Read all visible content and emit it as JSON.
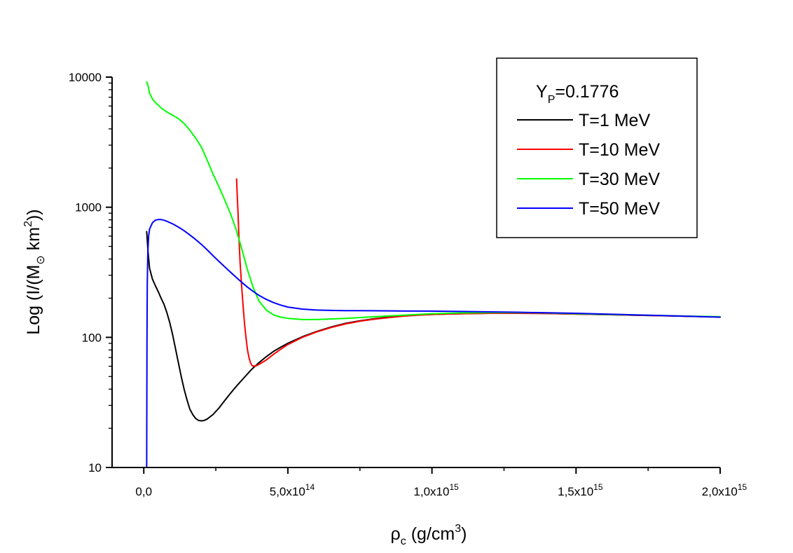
{
  "chart_data": {
    "type": "line",
    "x_scale": "linear",
    "y_scale": "log",
    "xlim": [
      -110000000000000.0,
      2000000000000000.0
    ],
    "ylim": [
      10,
      10000
    ],
    "xticks": [
      {
        "value": 0,
        "mantissa": "0,0",
        "exponent": ""
      },
      {
        "value": 500000000000000.0,
        "mantissa": "5,0x10",
        "exponent": "14"
      },
      {
        "value": 1000000000000000.0,
        "mantissa": "1,0x10",
        "exponent": "15"
      },
      {
        "value": 1500000000000000.0,
        "mantissa": "1,5x10",
        "exponent": "15"
      },
      {
        "value": 2000000000000000.0,
        "mantissa": "2,0x10",
        "exponent": "15"
      }
    ],
    "xminor": [
      250000000000000.0,
      750000000000000.0,
      1250000000000000.0,
      1750000000000000.0
    ],
    "yticks": [
      {
        "value": 10,
        "label": "10"
      },
      {
        "value": 100,
        "label": "100"
      },
      {
        "value": 1000,
        "label": "1000"
      },
      {
        "value": 10000,
        "label": "10000"
      }
    ],
    "xlabel": {
      "main": "ρ",
      "sub": "c",
      "unit_pre": " (g/cm",
      "sup": "3",
      "unit_post": ")"
    },
    "ylabel": {
      "pre": "Log (I/(M",
      "sub": "⊙",
      "mid": " km",
      "sup": "2",
      "post": "))"
    },
    "legend": {
      "position": "top-right",
      "title": {
        "main": "Y",
        "sub": "P",
        "rest": "=0.1776"
      }
    },
    "series": [
      {
        "name": "T=1 MeV",
        "color": "#000000",
        "points": [
          [
            10000000000000.0,
            650
          ],
          [
            15000000000000.0,
            450
          ],
          [
            20000000000000.0,
            340
          ],
          [
            30000000000000.0,
            280
          ],
          [
            40000000000000.0,
            250
          ],
          [
            50000000000000.0,
            225
          ],
          [
            60000000000000.0,
            200
          ],
          [
            70000000000000.0,
            180
          ],
          [
            80000000000000.0,
            155
          ],
          [
            90000000000000.0,
            130
          ],
          [
            100000000000000.0,
            105
          ],
          [
            110000000000000.0,
            82
          ],
          [
            120000000000000.0,
            64
          ],
          [
            130000000000000.0,
            50
          ],
          [
            140000000000000.0,
            40
          ],
          [
            150000000000000.0,
            33
          ],
          [
            160000000000000.0,
            28
          ],
          [
            170000000000000.0,
            25.5
          ],
          [
            180000000000000.0,
            23.8
          ],
          [
            190000000000000.0,
            23
          ],
          [
            200000000000000.0,
            22.8
          ],
          [
            210000000000000.0,
            23
          ],
          [
            220000000000000.0,
            23.6
          ],
          [
            240000000000000.0,
            25.5
          ],
          [
            260000000000000.0,
            28.5
          ],
          [
            280000000000000.0,
            32.5
          ],
          [
            300000000000000.0,
            37
          ],
          [
            325000000000000.0,
            43
          ],
          [
            350000000000000.0,
            49.5
          ],
          [
            375000000000000.0,
            57
          ],
          [
            400000000000000.0,
            64
          ],
          [
            425000000000000.0,
            71
          ],
          [
            450000000000000.0,
            78
          ],
          [
            475000000000000.0,
            84
          ],
          [
            500000000000000.0,
            90
          ],
          [
            550000000000000.0,
            101
          ],
          [
            600000000000000.0,
            111
          ],
          [
            650000000000000.0,
            120
          ],
          [
            700000000000000.0,
            128
          ],
          [
            750000000000000.0,
            134
          ],
          [
            800000000000000.0,
            139
          ],
          [
            850000000000000.0,
            143
          ],
          [
            900000000000000.0,
            146
          ],
          [
            950000000000000.0,
            148.5
          ],
          [
            1000000000000000.0,
            150
          ],
          [
            1100000000000000.0,
            152
          ],
          [
            1200000000000000.0,
            153
          ],
          [
            1300000000000000.0,
            153
          ],
          [
            1400000000000000.0,
            152.5
          ],
          [
            1500000000000000.0,
            151
          ],
          [
            1600000000000000.0,
            149.5
          ],
          [
            1700000000000000.0,
            148
          ],
          [
            1800000000000000.0,
            146.5
          ],
          [
            1900000000000000.0,
            145
          ],
          [
            2000000000000000.0,
            143.5
          ]
        ]
      },
      {
        "name": "T=10 MeV",
        "color": "#ff0000",
        "points": [
          [
            322000000000000.0,
            1650
          ],
          [
            324000000000000.0,
            1300
          ],
          [
            327000000000000.0,
            900
          ],
          [
            330000000000000.0,
            600
          ],
          [
            334000000000000.0,
            380
          ],
          [
            340000000000000.0,
            240
          ],
          [
            345000000000000.0,
            170
          ],
          [
            350000000000000.0,
            125
          ],
          [
            355000000000000.0,
            98
          ],
          [
            360000000000000.0,
            80
          ],
          [
            365000000000000.0,
            70
          ],
          [
            370000000000000.0,
            64
          ],
          [
            375000000000000.0,
            61
          ],
          [
            380000000000000.0,
            60
          ],
          [
            390000000000000.0,
            60.5
          ],
          [
            400000000000000.0,
            62
          ],
          [
            425000000000000.0,
            67
          ],
          [
            450000000000000.0,
            74
          ],
          [
            475000000000000.0,
            81
          ],
          [
            500000000000000.0,
            88
          ],
          [
            550000000000000.0,
            100
          ],
          [
            600000000000000.0,
            110
          ],
          [
            650000000000000.0,
            119
          ],
          [
            700000000000000.0,
            127
          ],
          [
            750000000000000.0,
            133
          ],
          [
            800000000000000.0,
            138
          ],
          [
            850000000000000.0,
            142
          ],
          [
            900000000000000.0,
            145.5
          ],
          [
            950000000000000.0,
            148
          ],
          [
            1000000000000000.0,
            150
          ],
          [
            1100000000000000.0,
            152
          ],
          [
            1200000000000000.0,
            153
          ],
          [
            1300000000000000.0,
            153
          ],
          [
            1400000000000000.0,
            152.5
          ],
          [
            1500000000000000.0,
            151
          ],
          [
            1600000000000000.0,
            149.5
          ],
          [
            1700000000000000.0,
            148
          ],
          [
            1800000000000000.0,
            146.5
          ],
          [
            1900000000000000.0,
            145
          ],
          [
            2000000000000000.0,
            143.5
          ]
        ]
      },
      {
        "name": "T=30 MeV",
        "color": "#00ff00",
        "points": [
          [
            10000000000000.0,
            9200
          ],
          [
            15000000000000.0,
            8600
          ],
          [
            20000000000000.0,
            7500
          ],
          [
            30000000000000.0,
            6800
          ],
          [
            40000000000000.0,
            6400
          ],
          [
            50000000000000.0,
            6100
          ],
          [
            60000000000000.0,
            5800
          ],
          [
            80000000000000.0,
            5400
          ],
          [
            100000000000000.0,
            5100
          ],
          [
            120000000000000.0,
            4800
          ],
          [
            140000000000000.0,
            4400
          ],
          [
            160000000000000.0,
            3900
          ],
          [
            180000000000000.0,
            3400
          ],
          [
            200000000000000.0,
            2900
          ],
          [
            220000000000000.0,
            2300
          ],
          [
            240000000000000.0,
            1800
          ],
          [
            260000000000000.0,
            1450
          ],
          [
            280000000000000.0,
            1150
          ],
          [
            300000000000000.0,
            900
          ],
          [
            320000000000000.0,
            680
          ],
          [
            340000000000000.0,
            480
          ],
          [
            360000000000000.0,
            330
          ],
          [
            380000000000000.0,
            240
          ],
          [
            400000000000000.0,
            190
          ],
          [
            425000000000000.0,
            162
          ],
          [
            450000000000000.0,
            149
          ],
          [
            475000000000000.0,
            143
          ],
          [
            500000000000000.0,
            140
          ],
          [
            550000000000000.0,
            137
          ],
          [
            600000000000000.0,
            137
          ],
          [
            650000000000000.0,
            138.5
          ],
          [
            700000000000000.0,
            140
          ],
          [
            800000000000000.0,
            144
          ],
          [
            900000000000000.0,
            148
          ],
          [
            1000000000000000.0,
            152
          ],
          [
            1100000000000000.0,
            154
          ],
          [
            1200000000000000.0,
            155
          ],
          [
            1300000000000000.0,
            155
          ],
          [
            1400000000000000.0,
            154
          ],
          [
            1500000000000000.0,
            152
          ],
          [
            1600000000000000.0,
            150
          ],
          [
            1700000000000000.0,
            148.5
          ],
          [
            1800000000000000.0,
            147
          ],
          [
            1900000000000000.0,
            145.5
          ],
          [
            2000000000000000.0,
            144
          ]
        ]
      },
      {
        "name": "T=50 MeV",
        "color": "#0000ff",
        "points": [
          [
            10000000000000.0,
            10
          ],
          [
            10500000000000.0,
            30
          ],
          [
            11000000000000.0,
            90
          ],
          [
            12000000000000.0,
            250
          ],
          [
            14000000000000.0,
            450
          ],
          [
            17000000000000.0,
            600
          ],
          [
            20000000000000.0,
            680
          ],
          [
            30000000000000.0,
            760
          ],
          [
            40000000000000.0,
            795
          ],
          [
            50000000000000.0,
            805
          ],
          [
            60000000000000.0,
            805
          ],
          [
            70000000000000.0,
            795
          ],
          [
            80000000000000.0,
            780
          ],
          [
            100000000000000.0,
            745
          ],
          [
            120000000000000.0,
            705
          ],
          [
            140000000000000.0,
            660
          ],
          [
            160000000000000.0,
            612
          ],
          [
            180000000000000.0,
            565
          ],
          [
            200000000000000.0,
            518
          ],
          [
            220000000000000.0,
            470
          ],
          [
            240000000000000.0,
            425
          ],
          [
            260000000000000.0,
            385
          ],
          [
            280000000000000.0,
            350
          ],
          [
            300000000000000.0,
            318
          ],
          [
            320000000000000.0,
            290
          ],
          [
            340000000000000.0,
            265
          ],
          [
            360000000000000.0,
            243
          ],
          [
            380000000000000.0,
            225
          ],
          [
            400000000000000.0,
            210
          ],
          [
            425000000000000.0,
            196
          ],
          [
            450000000000000.0,
            185
          ],
          [
            475000000000000.0,
            177
          ],
          [
            500000000000000.0,
            171
          ],
          [
            550000000000000.0,
            165
          ],
          [
            600000000000000.0,
            162
          ],
          [
            650000000000000.0,
            161
          ],
          [
            700000000000000.0,
            160.5
          ],
          [
            800000000000000.0,
            160
          ],
          [
            900000000000000.0,
            159.5
          ],
          [
            1000000000000000.0,
            159
          ],
          [
            1100000000000000.0,
            158
          ],
          [
            1200000000000000.0,
            157
          ],
          [
            1300000000000000.0,
            156
          ],
          [
            1400000000000000.0,
            154.5
          ],
          [
            1500000000000000.0,
            153
          ],
          [
            1600000000000000.0,
            151
          ],
          [
            1700000000000000.0,
            149
          ],
          [
            1800000000000000.0,
            147
          ],
          [
            1900000000000000.0,
            145
          ],
          [
            2000000000000000.0,
            143
          ]
        ]
      }
    ]
  }
}
